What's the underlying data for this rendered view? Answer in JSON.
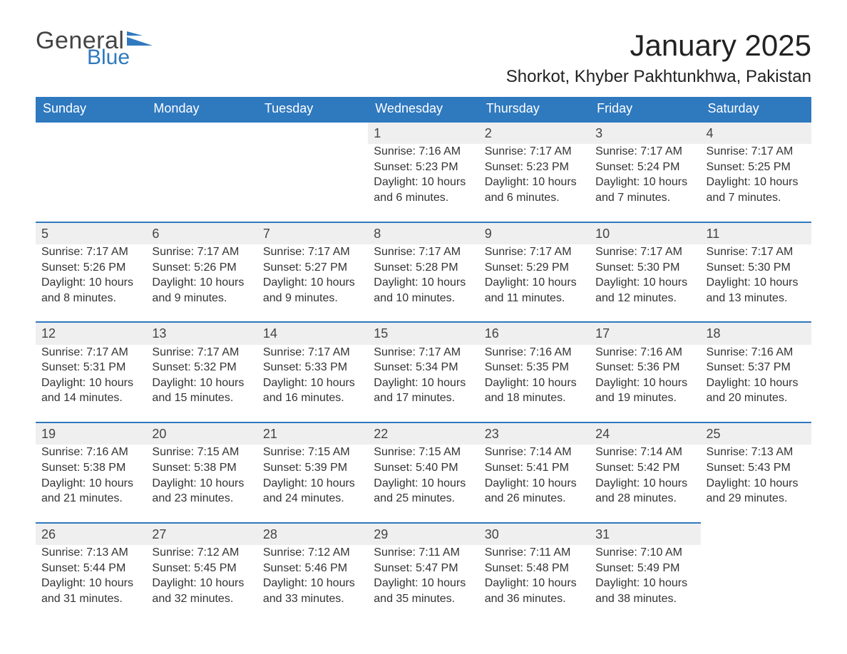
{
  "brand": {
    "word1": "General",
    "word2": "Blue",
    "accent_color": "#2f79bf"
  },
  "title": "January 2025",
  "location": "Shorkot, Khyber Pakhtunkhwa, Pakistan",
  "style": {
    "header_bg": "#2f79bf",
    "header_text": "#ffffff",
    "daynum_bg": "#efefef",
    "daynum_border": "#2f79bf",
    "body_bg": "#ffffff",
    "text_color": "#2c2c2c",
    "title_fontsize": 42,
    "location_fontsize": 24,
    "th_fontsize": 18,
    "cell_fontsize": 16
  },
  "columns": [
    "Sunday",
    "Monday",
    "Tuesday",
    "Wednesday",
    "Thursday",
    "Friday",
    "Saturday"
  ],
  "weeks": [
    [
      null,
      null,
      null,
      {
        "day": "1",
        "sunrise": "Sunrise: 7:16 AM",
        "sunset": "Sunset: 5:23 PM",
        "daylight": "Daylight: 10 hours and 6 minutes."
      },
      {
        "day": "2",
        "sunrise": "Sunrise: 7:17 AM",
        "sunset": "Sunset: 5:23 PM",
        "daylight": "Daylight: 10 hours and 6 minutes."
      },
      {
        "day": "3",
        "sunrise": "Sunrise: 7:17 AM",
        "sunset": "Sunset: 5:24 PM",
        "daylight": "Daylight: 10 hours and 7 minutes."
      },
      {
        "day": "4",
        "sunrise": "Sunrise: 7:17 AM",
        "sunset": "Sunset: 5:25 PM",
        "daylight": "Daylight: 10 hours and 7 minutes."
      }
    ],
    [
      {
        "day": "5",
        "sunrise": "Sunrise: 7:17 AM",
        "sunset": "Sunset: 5:26 PM",
        "daylight": "Daylight: 10 hours and 8 minutes."
      },
      {
        "day": "6",
        "sunrise": "Sunrise: 7:17 AM",
        "sunset": "Sunset: 5:26 PM",
        "daylight": "Daylight: 10 hours and 9 minutes."
      },
      {
        "day": "7",
        "sunrise": "Sunrise: 7:17 AM",
        "sunset": "Sunset: 5:27 PM",
        "daylight": "Daylight: 10 hours and 9 minutes."
      },
      {
        "day": "8",
        "sunrise": "Sunrise: 7:17 AM",
        "sunset": "Sunset: 5:28 PM",
        "daylight": "Daylight: 10 hours and 10 minutes."
      },
      {
        "day": "9",
        "sunrise": "Sunrise: 7:17 AM",
        "sunset": "Sunset: 5:29 PM",
        "daylight": "Daylight: 10 hours and 11 minutes."
      },
      {
        "day": "10",
        "sunrise": "Sunrise: 7:17 AM",
        "sunset": "Sunset: 5:30 PM",
        "daylight": "Daylight: 10 hours and 12 minutes."
      },
      {
        "day": "11",
        "sunrise": "Sunrise: 7:17 AM",
        "sunset": "Sunset: 5:30 PM",
        "daylight": "Daylight: 10 hours and 13 minutes."
      }
    ],
    [
      {
        "day": "12",
        "sunrise": "Sunrise: 7:17 AM",
        "sunset": "Sunset: 5:31 PM",
        "daylight": "Daylight: 10 hours and 14 minutes."
      },
      {
        "day": "13",
        "sunrise": "Sunrise: 7:17 AM",
        "sunset": "Sunset: 5:32 PM",
        "daylight": "Daylight: 10 hours and 15 minutes."
      },
      {
        "day": "14",
        "sunrise": "Sunrise: 7:17 AM",
        "sunset": "Sunset: 5:33 PM",
        "daylight": "Daylight: 10 hours and 16 minutes."
      },
      {
        "day": "15",
        "sunrise": "Sunrise: 7:17 AM",
        "sunset": "Sunset: 5:34 PM",
        "daylight": "Daylight: 10 hours and 17 minutes."
      },
      {
        "day": "16",
        "sunrise": "Sunrise: 7:16 AM",
        "sunset": "Sunset: 5:35 PM",
        "daylight": "Daylight: 10 hours and 18 minutes."
      },
      {
        "day": "17",
        "sunrise": "Sunrise: 7:16 AM",
        "sunset": "Sunset: 5:36 PM",
        "daylight": "Daylight: 10 hours and 19 minutes."
      },
      {
        "day": "18",
        "sunrise": "Sunrise: 7:16 AM",
        "sunset": "Sunset: 5:37 PM",
        "daylight": "Daylight: 10 hours and 20 minutes."
      }
    ],
    [
      {
        "day": "19",
        "sunrise": "Sunrise: 7:16 AM",
        "sunset": "Sunset: 5:38 PM",
        "daylight": "Daylight: 10 hours and 21 minutes."
      },
      {
        "day": "20",
        "sunrise": "Sunrise: 7:15 AM",
        "sunset": "Sunset: 5:38 PM",
        "daylight": "Daylight: 10 hours and 23 minutes."
      },
      {
        "day": "21",
        "sunrise": "Sunrise: 7:15 AM",
        "sunset": "Sunset: 5:39 PM",
        "daylight": "Daylight: 10 hours and 24 minutes."
      },
      {
        "day": "22",
        "sunrise": "Sunrise: 7:15 AM",
        "sunset": "Sunset: 5:40 PM",
        "daylight": "Daylight: 10 hours and 25 minutes."
      },
      {
        "day": "23",
        "sunrise": "Sunrise: 7:14 AM",
        "sunset": "Sunset: 5:41 PM",
        "daylight": "Daylight: 10 hours and 26 minutes."
      },
      {
        "day": "24",
        "sunrise": "Sunrise: 7:14 AM",
        "sunset": "Sunset: 5:42 PM",
        "daylight": "Daylight: 10 hours and 28 minutes."
      },
      {
        "day": "25",
        "sunrise": "Sunrise: 7:13 AM",
        "sunset": "Sunset: 5:43 PM",
        "daylight": "Daylight: 10 hours and 29 minutes."
      }
    ],
    [
      {
        "day": "26",
        "sunrise": "Sunrise: 7:13 AM",
        "sunset": "Sunset: 5:44 PM",
        "daylight": "Daylight: 10 hours and 31 minutes."
      },
      {
        "day": "27",
        "sunrise": "Sunrise: 7:12 AM",
        "sunset": "Sunset: 5:45 PM",
        "daylight": "Daylight: 10 hours and 32 minutes."
      },
      {
        "day": "28",
        "sunrise": "Sunrise: 7:12 AM",
        "sunset": "Sunset: 5:46 PM",
        "daylight": "Daylight: 10 hours and 33 minutes."
      },
      {
        "day": "29",
        "sunrise": "Sunrise: 7:11 AM",
        "sunset": "Sunset: 5:47 PM",
        "daylight": "Daylight: 10 hours and 35 minutes."
      },
      {
        "day": "30",
        "sunrise": "Sunrise: 7:11 AM",
        "sunset": "Sunset: 5:48 PM",
        "daylight": "Daylight: 10 hours and 36 minutes."
      },
      {
        "day": "31",
        "sunrise": "Sunrise: 7:10 AM",
        "sunset": "Sunset: 5:49 PM",
        "daylight": "Daylight: 10 hours and 38 minutes."
      },
      null
    ]
  ]
}
